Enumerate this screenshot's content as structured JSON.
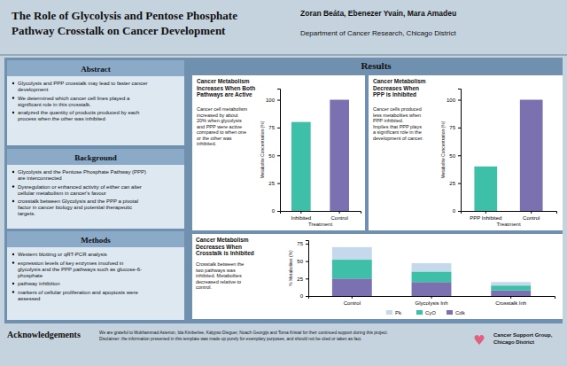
{
  "title": "The Role of Glycolysis and Pentose Phosphate\nPathway Crosstalk on Cancer Development",
  "annotations": [
    "Zoran Beáta, Ebenezer Yvain, Mara Amadeu",
    "Department of Cancer Research, Chicago District",
    "Results",
    "Acknowledgements",
    "We are grateful to Mukhammad Asterion, Ida Kimberlee, Kalypso Dieguer, Noach Georgijs and Toma Kristal for their continued support during this project.\nDisclaimer: the information presented in this template was made up purely for exemplary purposes, and should not be cited or taken as fact.",
    "♥",
    "Cancer Support Group,\nChicago District"
  ],
  "sections": [
    {
      "title": "Abstract",
      "annotations": [
        "Glycolysis and PPP crosstalk may lead to faster cancer\ndevelopment",
        "We determined which cancer cell lines played a\nsignificant role in this crosstalk.",
        "analyzed the quantity of products produced by each\nprocess when the other was inhibited"
      ]
    },
    {
      "title": "Background",
      "annotations": [
        "Glycolysis and the Pentose Phosphate Pathway (PPP)\nare interconnected",
        "Dysregulation or enhanced activity of either can alter\ncellular metabolism  in cancer's favour",
        "crosstalk between Glycolysis and the PPP a pivotal\nfactor in cancer biology and potential therapeutic\ntargets."
      ]
    },
    {
      "title": "Methods",
      "annotations": [
        "Western blotting or qRT-PCR analysis",
        "expression levels of key enzymes involved in\nglycolysis and the PPP pathways such as glucose-6-\nphosphate",
        "pathway inhibition",
        "markers of cellular proliferation and apoptosis were\nassessed"
      ]
    }
  ],
  "chart_data": [
    {
      "type": "bar",
      "title": "Cancer Metabolism\nIncreases When Both\nPathways are Active",
      "annotations": [
        "Cancer cell metabolism\nincreased by about\n20% when glycolysis\nand PPP were active\ncompared to when one\nor the other was\ninhibited."
      ],
      "xlabel": "Treatment",
      "ylabel": "Metabolite Concentration (%)",
      "categories": [
        "Inhibited",
        "Control"
      ],
      "values": [
        80,
        100
      ],
      "colors": [
        "#3dbfa8",
        "#7b70b0"
      ],
      "ylim": [
        0,
        110
      ],
      "yticks": [
        0,
        25,
        50,
        75,
        100
      ],
      "grid": false
    },
    {
      "type": "bar",
      "title": "Cancer Metabolism\nDecreases When\nPPP is Inhibited",
      "annotations": [
        "Cancer cells produced\nless metabolites when\nPPP inhibited.\n\nImplies that PPP plays\na significant role in the\ndevelopment of cancer."
      ],
      "xlabel": "Treatment",
      "ylabel": "Metabolite Concentration (%)",
      "categories": [
        "PPP Inhibited",
        "Control"
      ],
      "values": [
        40,
        100
      ],
      "colors": [
        "#3dbfa8",
        "#7b70b0"
      ],
      "ylim": [
        0,
        110
      ],
      "yticks": [
        0,
        25,
        50,
        75,
        100
      ],
      "grid": false
    },
    {
      "type": "bar",
      "stacked": true,
      "title": "Cancer Metabolism\nDecreases When\nCrosstalk is Inhibited",
      "annotations": [
        "Crosstalk between the\ntwo pathways was\ninhibited. Metabolites\ndecreased relative to\ncontrol."
      ],
      "ylabel": "% Metabolites (%)",
      "categories": [
        "Control",
        "Glycolysis Inh",
        "Crosstalk Inh"
      ],
      "series": [
        {
          "name": "Cdk",
          "color": "#7b70b0",
          "values": [
            25,
            20,
            8
          ]
        },
        {
          "name": "CyO",
          "color": "#3dbfa8",
          "values": [
            27,
            15,
            7
          ]
        },
        {
          "name": "Pk",
          "color": "#c5d8ec",
          "values": [
            18,
            12,
            5
          ]
        }
      ],
      "ylim": [
        0,
        80
      ],
      "yticks": [
        0,
        25,
        50,
        75
      ],
      "grid": false,
      "legend": "bottom"
    }
  ]
}
